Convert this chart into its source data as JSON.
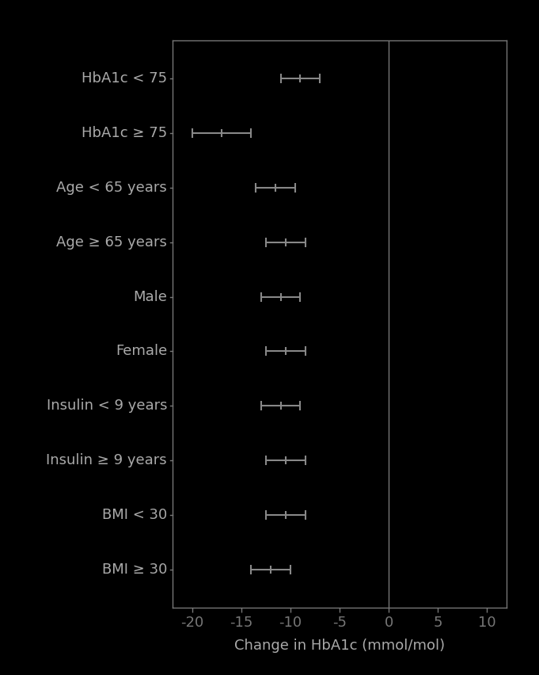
{
  "categories": [
    "HbA1c < 75",
    "HbA1c ≥ 75",
    "Age < 65 years",
    "Age ≥ 65 years",
    "Male",
    "Female",
    "Insulin < 9 years",
    "Insulin ≥ 9 years",
    "BMI < 30",
    "BMI ≥ 30"
  ],
  "means": [
    -9.0,
    -17.0,
    -11.5,
    -10.5,
    -11.0,
    -10.5,
    -11.0,
    -10.5,
    -10.5,
    -12.0
  ],
  "ci_low": [
    -11.0,
    -20.0,
    -13.5,
    -12.5,
    -13.0,
    -12.5,
    -13.0,
    -12.5,
    -12.5,
    -14.0
  ],
  "ci_high": [
    -7.0,
    -14.0,
    -9.5,
    -8.5,
    -9.0,
    -8.5,
    -9.0,
    -8.5,
    -8.5,
    -10.0
  ],
  "xlim": [
    -22,
    12
  ],
  "xticks": [
    -20,
    -15,
    -10,
    -5,
    0,
    5,
    10
  ],
  "xlabel": "Change in HbA1c (mmol/mol)",
  "vline_x": 0,
  "color": "#888888",
  "bg_color": "#000000",
  "text_color": "#aaaaaa",
  "spine_color": "#777777",
  "cap_size": 4,
  "linewidth": 1.5,
  "label_fontsize": 13,
  "tick_fontsize": 13
}
